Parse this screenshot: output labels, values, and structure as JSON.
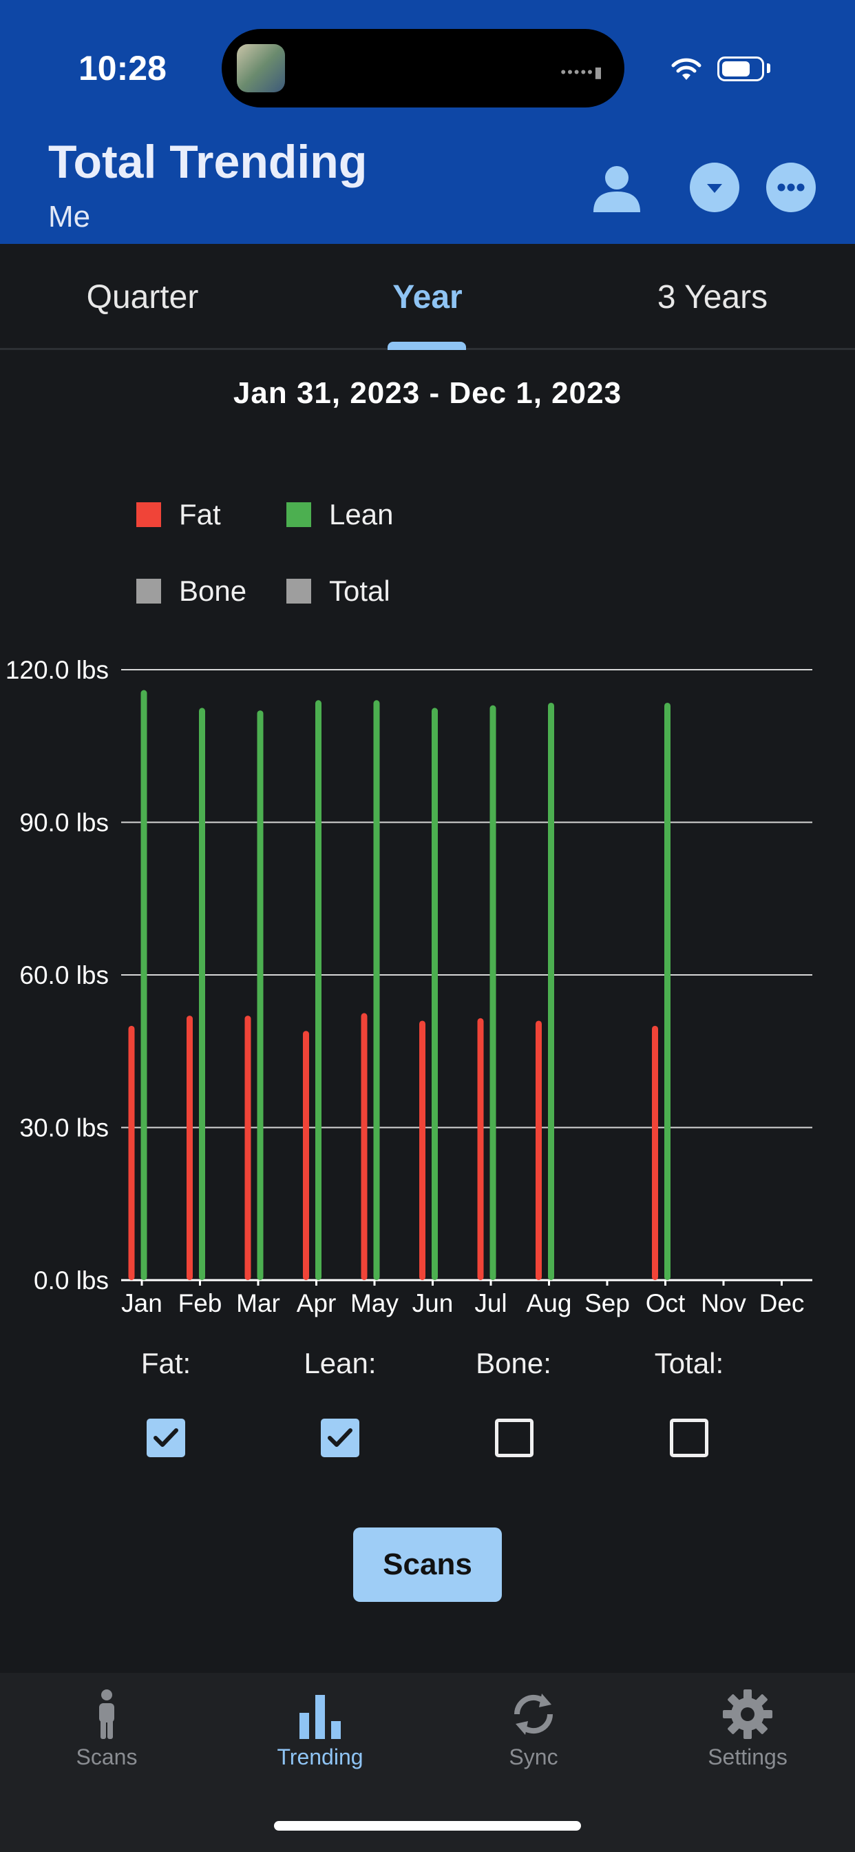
{
  "status_bar": {
    "time": "10:28"
  },
  "header": {
    "title": "Total Trending",
    "subtitle": "Me"
  },
  "tabs": [
    {
      "label": "Quarter",
      "active": false
    },
    {
      "label": "Year",
      "active": true
    },
    {
      "label": "3 Years",
      "active": false
    }
  ],
  "date_range": "Jan 31, 2023 - Dec 1, 2023",
  "legend": [
    {
      "label": "Fat",
      "color": "#f04438"
    },
    {
      "label": "Lean",
      "color": "#4caf50"
    },
    {
      "label": "Bone",
      "color": "#9e9e9e"
    },
    {
      "label": "Total",
      "color": "#9e9e9e"
    }
  ],
  "chart_data": {
    "type": "bar",
    "categories": [
      "Jan",
      "Feb",
      "Mar",
      "Apr",
      "May",
      "Jun",
      "Jul",
      "Aug",
      "Sep",
      "Oct",
      "Nov",
      "Dec"
    ],
    "series": [
      {
        "name": "Fat",
        "color": "#f04438",
        "values": [
          50,
          52,
          52,
          49,
          52.5,
          51,
          51.5,
          51,
          null,
          50,
          null,
          null
        ]
      },
      {
        "name": "Lean",
        "color": "#4caf50",
        "values": [
          116,
          112.5,
          112,
          114,
          114,
          112.5,
          113,
          113.5,
          null,
          113.5,
          null,
          null
        ]
      }
    ],
    "yticks": [
      "0.0 lbs",
      "30.0 lbs",
      "60.0 lbs",
      "90.0 lbs",
      "120.0 lbs"
    ],
    "ylim": [
      0,
      120
    ],
    "grid": true,
    "legend_position": "top-left"
  },
  "toggles": [
    {
      "label": "Fat:",
      "checked": true
    },
    {
      "label": "Lean:",
      "checked": true
    },
    {
      "label": "Bone:",
      "checked": false
    },
    {
      "label": "Total:",
      "checked": false
    }
  ],
  "scans_button": "Scans",
  "bottom_nav": [
    {
      "label": "Scans",
      "icon": "person-icon",
      "active": false
    },
    {
      "label": "Trending",
      "icon": "bar-chart-icon",
      "active": true
    },
    {
      "label": "Sync",
      "icon": "sync-icon",
      "active": false
    },
    {
      "label": "Settings",
      "icon": "gear-icon",
      "active": false
    }
  ]
}
